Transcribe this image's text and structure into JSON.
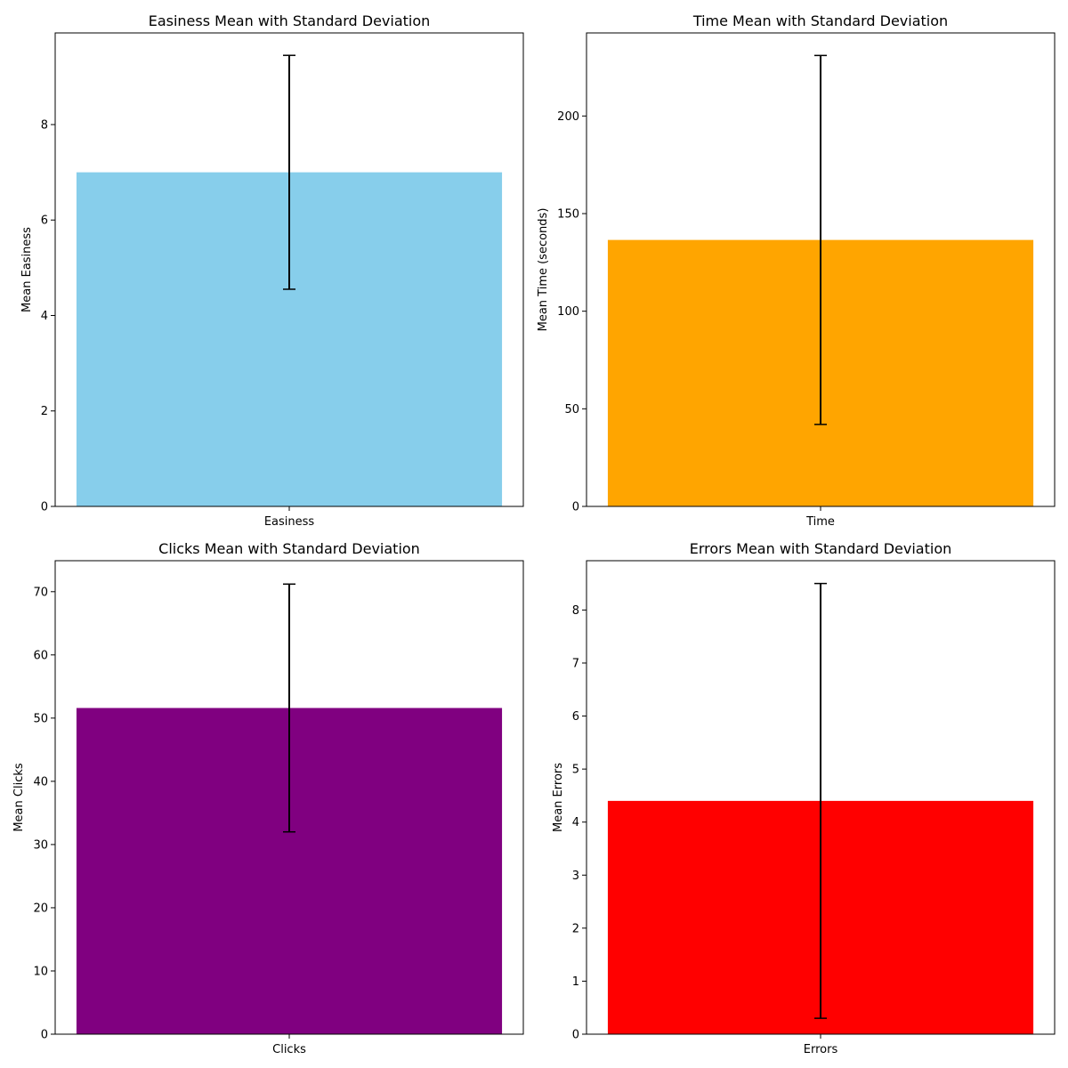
{
  "figure_title": "",
  "colors": {
    "errorbar": "#000000",
    "axes": "#000000"
  },
  "chart_data": [
    {
      "type": "bar",
      "title": "Easiness Mean with Standard Deviation",
      "xlabel": "",
      "ylabel": "Mean Easiness",
      "categories": [
        "Easiness"
      ],
      "values": [
        7.0
      ],
      "error": [
        2.45
      ],
      "color": "#87ceeb",
      "ylim": [
        0,
        9.92
      ],
      "yticks": [
        0,
        2,
        4,
        6,
        8
      ]
    },
    {
      "type": "bar",
      "title": "Time Mean with Standard Deviation",
      "xlabel": "",
      "ylabel": "Mean Time (seconds)",
      "categories": [
        "Time"
      ],
      "values": [
        136.5
      ],
      "error": [
        94.5
      ],
      "color": "#ffa500",
      "ylim": [
        0,
        242.55
      ],
      "yticks": [
        0,
        50,
        100,
        150,
        200
      ]
    },
    {
      "type": "bar",
      "title": "Clicks Mean with Standard Deviation",
      "xlabel": "",
      "ylabel": "Mean Clicks",
      "categories": [
        "Clicks"
      ],
      "values": [
        51.6
      ],
      "error": [
        19.6
      ],
      "color": "#800080",
      "ylim": [
        0,
        74.9
      ],
      "yticks": [
        0,
        10,
        20,
        30,
        40,
        50,
        60,
        70
      ]
    },
    {
      "type": "bar",
      "title": "Errors Mean with Standard Deviation",
      "xlabel": "",
      "ylabel": "Mean Errors",
      "categories": [
        "Errors"
      ],
      "values": [
        4.4
      ],
      "error": [
        4.1
      ],
      "color": "#ff0000",
      "ylim": [
        0,
        8.93
      ],
      "yticks": [
        0,
        1,
        2,
        3,
        4,
        5,
        6,
        7,
        8
      ]
    }
  ]
}
